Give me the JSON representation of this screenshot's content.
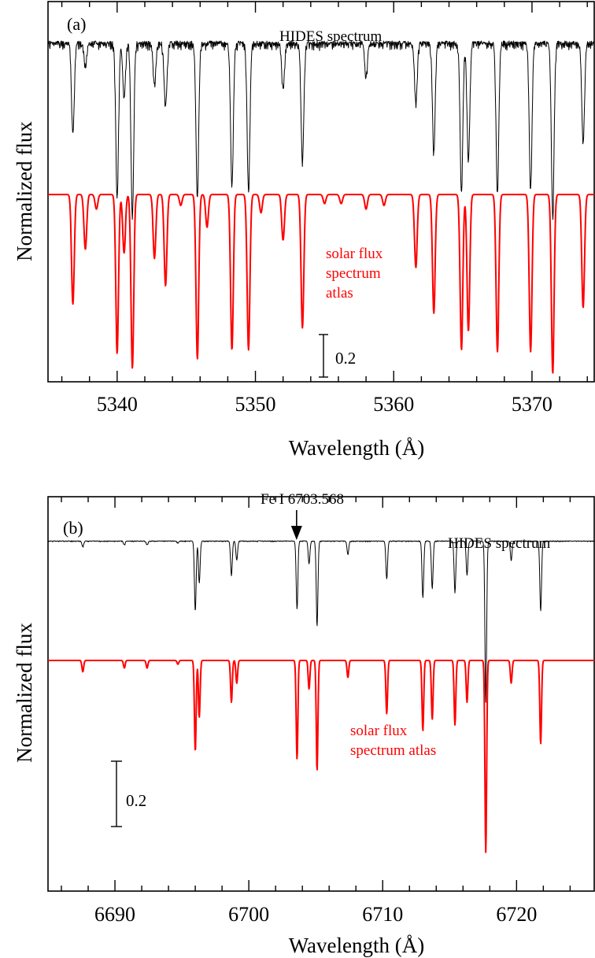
{
  "chart_data": [
    {
      "type": "line",
      "panel_label": "(a)",
      "xlabel": "Wavelength (Å)",
      "ylabel": "Normalized flux",
      "xlim": [
        5335.0,
        5374.5
      ],
      "x_ticks": [
        5340,
        5350,
        5360,
        5370
      ],
      "x_tick_labels": [
        "5340",
        "5350",
        "5360",
        "5370"
      ],
      "scale_bar_label": "0.2",
      "scale_bar_value": 0.2,
      "colors": {
        "observed": "#000000",
        "solar": "#ff0000"
      },
      "series": [
        {
          "name": "HIDES spectrum",
          "continuum": 1.0,
          "offset": 0.0,
          "noise": 0.055,
          "lines": [
            [
              5336.8,
              0.5
            ],
            [
              5337.7,
              0.12
            ],
            [
              5340.0,
              0.85
            ],
            [
              5340.5,
              0.3
            ],
            [
              5341.1,
              0.95
            ],
            [
              5342.7,
              0.22
            ],
            [
              5343.5,
              0.35
            ],
            [
              5345.8,
              0.84
            ],
            [
              5348.3,
              0.78
            ],
            [
              5349.5,
              0.8
            ],
            [
              5352.0,
              0.25
            ],
            [
              5353.4,
              0.65
            ],
            [
              5358.0,
              0.18
            ],
            [
              5361.6,
              0.32
            ],
            [
              5362.9,
              0.6
            ],
            [
              5364.9,
              0.82
            ],
            [
              5365.4,
              0.65
            ],
            [
              5367.5,
              0.82
            ],
            [
              5369.9,
              0.8
            ],
            [
              5371.5,
              0.95
            ],
            [
              5373.7,
              0.55
            ]
          ]
        },
        {
          "name": "solar flux spectrum atlas",
          "continuum": 1.0,
          "offset": -0.84,
          "noise": 0.0,
          "lines": [
            [
              5336.8,
              0.6
            ],
            [
              5337.7,
              0.3
            ],
            [
              5338.5,
              0.08
            ],
            [
              5340.0,
              0.87
            ],
            [
              5340.5,
              0.32
            ],
            [
              5341.1,
              0.95
            ],
            [
              5342.7,
              0.35
            ],
            [
              5343.5,
              0.5
            ],
            [
              5344.6,
              0.06
            ],
            [
              5345.8,
              0.9
            ],
            [
              5346.5,
              0.18
            ],
            [
              5348.3,
              0.85
            ],
            [
              5349.5,
              0.85
            ],
            [
              5350.4,
              0.1
            ],
            [
              5352.0,
              0.25
            ],
            [
              5353.4,
              0.73
            ],
            [
              5355.0,
              0.05
            ],
            [
              5356.2,
              0.05
            ],
            [
              5358.0,
              0.08
            ],
            [
              5359.3,
              0.06
            ],
            [
              5361.6,
              0.4
            ],
            [
              5362.9,
              0.65
            ],
            [
              5364.9,
              0.85
            ],
            [
              5365.4,
              0.75
            ],
            [
              5367.5,
              0.86
            ],
            [
              5369.9,
              0.86
            ],
            [
              5371.5,
              0.98
            ],
            [
              5373.7,
              0.62
            ]
          ]
        }
      ],
      "annotations": [
        "HIDES spectrum",
        "solar flux",
        "spectrum",
        "atlas"
      ]
    },
    {
      "type": "line",
      "panel_label": "(b)",
      "xlabel": "Wavelength (Å)",
      "ylabel": "Normalized flux",
      "xlim": [
        6685.0,
        6725.8
      ],
      "x_ticks": [
        6690,
        6700,
        6710,
        6720
      ],
      "x_tick_labels": [
        "6690",
        "6700",
        "6710",
        "6720"
      ],
      "scale_bar_label": "0.2",
      "scale_bar_value": 0.2,
      "arrow_label": "Fe I 6703.568",
      "arrow_x": 6703.568,
      "colors": {
        "observed": "#000000",
        "solar": "#ff0000"
      },
      "series": [
        {
          "name": "HIDES spectrum",
          "continuum": 1.0,
          "offset": 0.0,
          "noise": 0.006,
          "lines": [
            [
              6687.6,
              0.03
            ],
            [
              6690.7,
              0.02
            ],
            [
              6692.4,
              0.02
            ],
            [
              6694.7,
              0.01
            ],
            [
              6696.0,
              0.37
            ],
            [
              6696.3,
              0.22
            ],
            [
              6698.7,
              0.18
            ],
            [
              6699.1,
              0.1
            ],
            [
              6703.6,
              0.36
            ],
            [
              6704.5,
              0.12
            ],
            [
              6705.1,
              0.45
            ],
            [
              6707.4,
              0.07
            ],
            [
              6710.3,
              0.2
            ],
            [
              6713.0,
              0.3
            ],
            [
              6713.7,
              0.25
            ],
            [
              6715.4,
              0.27
            ],
            [
              6716.3,
              0.18
            ],
            [
              6717.7,
              0.85
            ],
            [
              6719.6,
              0.1
            ],
            [
              6721.8,
              0.37
            ]
          ]
        },
        {
          "name": "solar flux spectrum atlas",
          "continuum": 1.0,
          "offset": -0.63,
          "noise": 0.0,
          "lines": [
            [
              6687.6,
              0.06
            ],
            [
              6690.7,
              0.04
            ],
            [
              6692.4,
              0.04
            ],
            [
              6694.7,
              0.02
            ],
            [
              6696.0,
              0.48
            ],
            [
              6696.3,
              0.3
            ],
            [
              6698.7,
              0.22
            ],
            [
              6699.1,
              0.12
            ],
            [
              6703.6,
              0.52
            ],
            [
              6704.5,
              0.15
            ],
            [
              6705.1,
              0.58
            ],
            [
              6707.4,
              0.09
            ],
            [
              6710.3,
              0.28
            ],
            [
              6713.0,
              0.37
            ],
            [
              6713.7,
              0.31
            ],
            [
              6715.4,
              0.34
            ],
            [
              6716.3,
              0.22
            ],
            [
              6717.7,
              1.01
            ],
            [
              6719.6,
              0.12
            ],
            [
              6721.8,
              0.44
            ]
          ]
        }
      ],
      "annotations": [
        "HIDES spectrum",
        "solar flux",
        "spectrum atlas"
      ]
    }
  ]
}
